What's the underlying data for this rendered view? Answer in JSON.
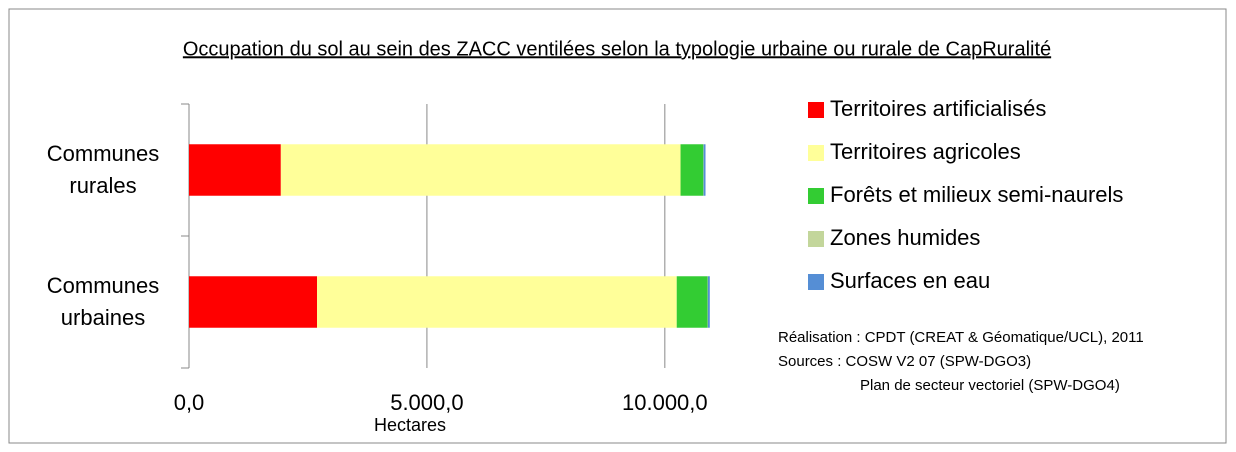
{
  "chart_data": {
    "type": "stacked_barh",
    "title": "Occupation du sol au sein des ZACC ventilées selon la typologie urbaine ou rurale de CapRuralité",
    "x_label": "Hectares",
    "categories": [
      "Communes rurales",
      "Communes urbaines"
    ],
    "series": [
      {
        "name": "Territoires artificialisés",
        "color": "#ff0000",
        "values": [
          1930,
          2690
        ]
      },
      {
        "name": "Territoires agricoles",
        "color": "#ffff99",
        "values": [
          8400,
          7560
        ]
      },
      {
        "name": "Forêts et milieux semi-naurels",
        "color": "#33cc33",
        "values": [
          480,
          650
        ]
      },
      {
        "name": "Zones humides",
        "color": "#c3d69b",
        "values": [
          5,
          5
        ]
      },
      {
        "name": "Surfaces en eau",
        "color": "#558ed5",
        "values": [
          40,
          40
        ]
      }
    ],
    "xlim": [
      0,
      12000
    ],
    "xticks": [
      {
        "value": 0,
        "label": "0,0"
      },
      {
        "value": 5000,
        "label": "5.000,0"
      },
      {
        "value": 10000,
        "label": "10.000,0"
      }
    ],
    "grid": true,
    "legend": "right",
    "notes": [
      "Réalisation : CPDT (CREAT & Géomatique/UCL), 2011",
      "Sources : COSW V2 07 (SPW-DGO3)",
      "Plan de secteur vectoriel (SPW-DGO4)"
    ]
  }
}
